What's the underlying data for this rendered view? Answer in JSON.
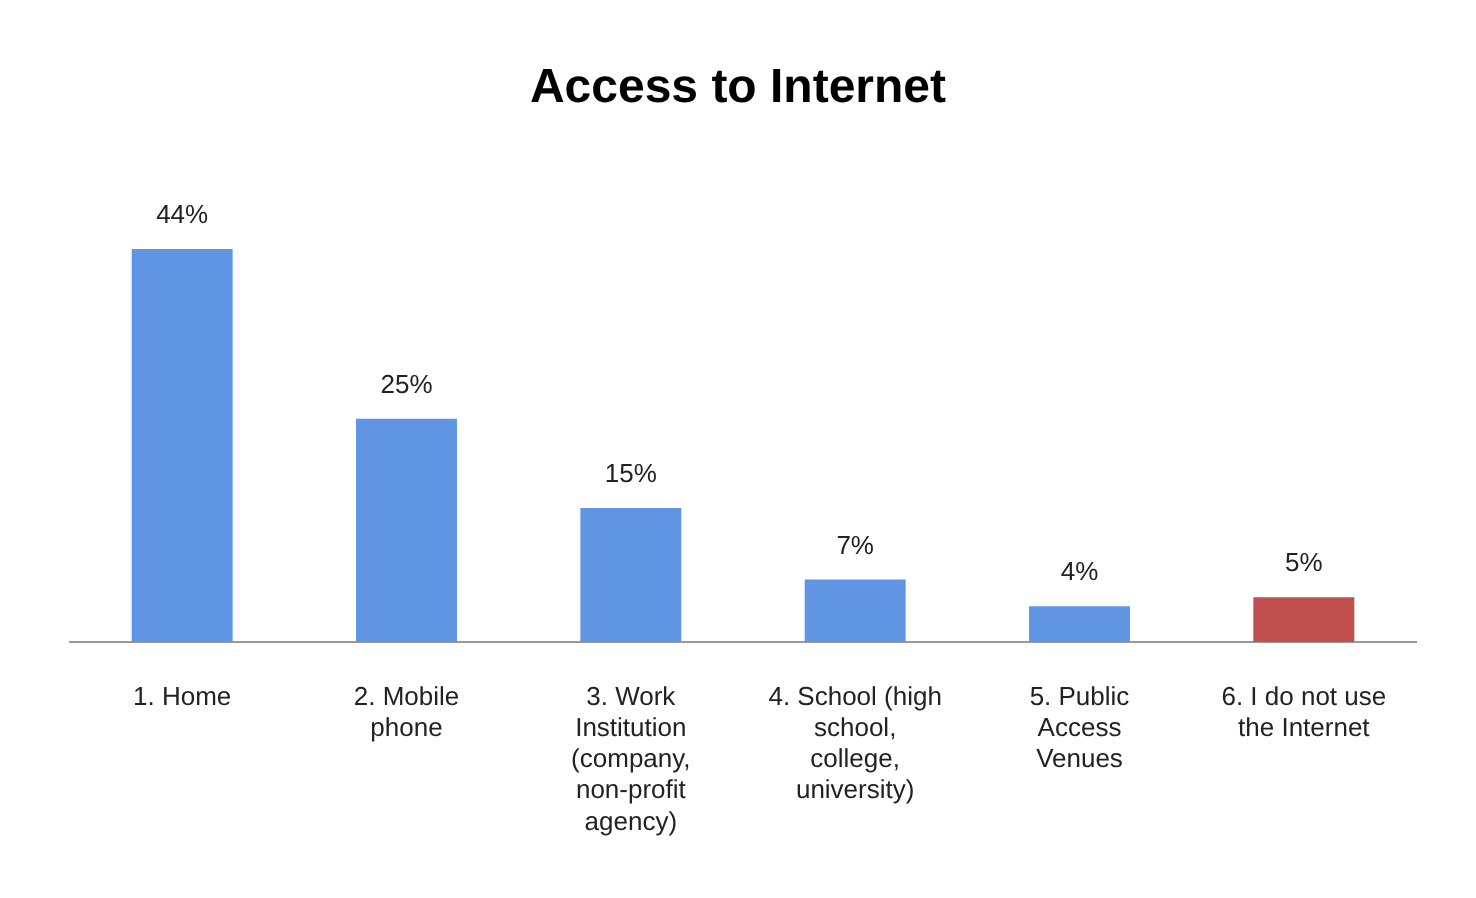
{
  "chart_data": {
    "type": "bar",
    "title": "Access to Internet",
    "categories": [
      "1. Home",
      "2. Mobile phone",
      "3. Work Institution (company, non-profit agency)",
      "4. School (high school, college, university)",
      "5. Public Access Venues",
      "6. I do not use the Internet"
    ],
    "values": [
      44,
      25,
      15,
      7,
      4,
      5
    ],
    "colors": [
      "#5f95e3",
      "#5f95e3",
      "#5f95e3",
      "#5f95e3",
      "#5f95e3",
      "#c0504d"
    ],
    "value_labels": [
      "44%",
      "25%",
      "15%",
      "7%",
      "4%",
      "5%"
    ],
    "grid": false,
    "legend": false
  }
}
